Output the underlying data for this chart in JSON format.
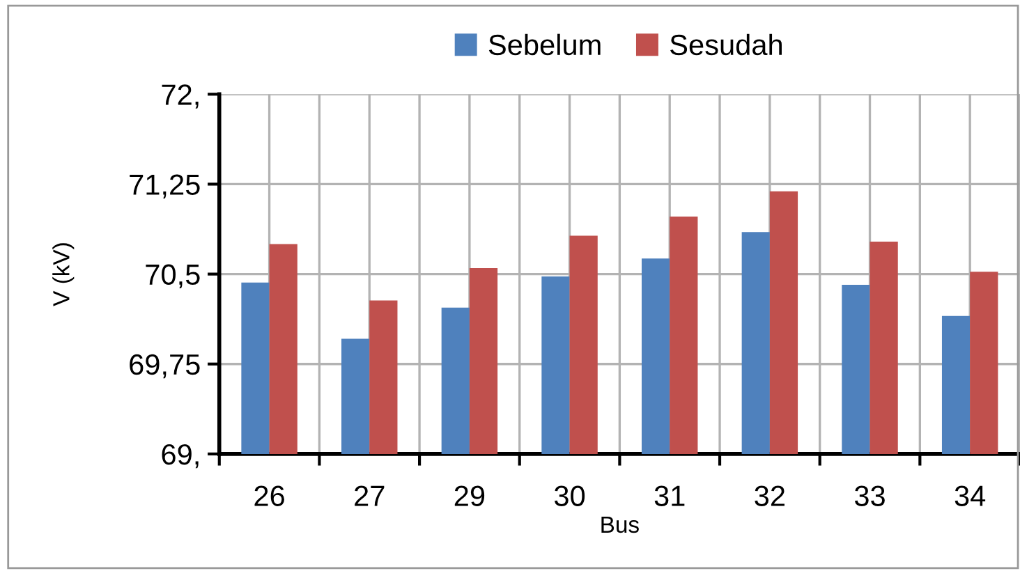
{
  "chart_data": {
    "type": "bar",
    "xlabel": "Bus",
    "ylabel": "V (kV)",
    "categories": [
      "26",
      "27",
      "29",
      "30",
      "31",
      "32",
      "33",
      "34"
    ],
    "series": [
      {
        "name": "Sebelum",
        "color": "#4f81bd",
        "values": [
          70.43,
          69.96,
          70.22,
          70.48,
          70.63,
          70.85,
          70.41,
          70.15
        ]
      },
      {
        "name": "Sesudah",
        "color": "#c0504d",
        "values": [
          70.75,
          70.28,
          70.55,
          70.82,
          70.98,
          71.19,
          70.77,
          70.52
        ]
      }
    ],
    "ylim": [
      69,
      72
    ],
    "yticks": [
      {
        "value": 69,
        "label": "69,"
      },
      {
        "value": 69.75,
        "label": "69,75"
      },
      {
        "value": 70.5,
        "label": "70,5"
      },
      {
        "value": 71.25,
        "label": "71,25"
      },
      {
        "value": 72,
        "label": "72,"
      }
    ],
    "grid": true,
    "legend": "top"
  }
}
